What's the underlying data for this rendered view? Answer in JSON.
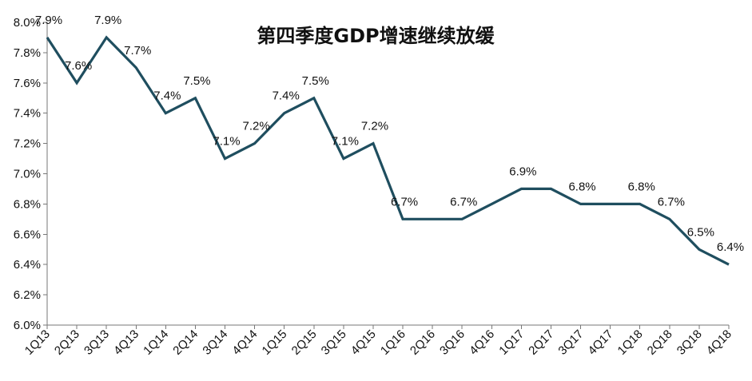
{
  "chart_data": {
    "type": "line",
    "title": "第四季度GDP增速继续放缓",
    "xlabel": "",
    "ylabel": "",
    "categories": [
      "1Q13",
      "2Q13",
      "3Q13",
      "4Q13",
      "1Q14",
      "2Q14",
      "3Q14",
      "4Q14",
      "1Q15",
      "2Q15",
      "3Q15",
      "4Q15",
      "1Q16",
      "2Q16",
      "3Q16",
      "4Q16",
      "1Q17",
      "2Q17",
      "3Q17",
      "4Q17",
      "1Q18",
      "2Q18",
      "3Q18",
      "4Q18"
    ],
    "values": [
      7.9,
      7.6,
      7.9,
      7.7,
      7.4,
      7.5,
      7.1,
      7.2,
      7.4,
      7.5,
      7.1,
      7.2,
      6.7,
      6.7,
      6.7,
      6.8,
      6.9,
      6.9,
      6.8,
      6.8,
      6.8,
      6.7,
      6.5,
      6.4
    ],
    "data_labels": [
      "7.9%",
      "7.6%",
      "7.9%",
      "7.7%",
      "7.4%",
      "7.5%",
      "7.1%",
      "7.2%",
      "7.4%",
      "7.5%",
      "7.1%",
      "7.2%",
      "6.7%",
      "",
      "6.7%",
      "",
      "6.9%",
      "",
      "6.8%",
      "",
      "6.8%",
      "6.7%",
      "6.5%",
      "6.4%"
    ],
    "ylim": [
      6.0,
      8.0
    ],
    "yticks": [
      "6.0%",
      "6.2%",
      "6.4%",
      "6.6%",
      "6.8%",
      "7.0%",
      "7.2%",
      "7.4%",
      "7.6%",
      "7.8%",
      "8.0%"
    ],
    "ytick_values": [
      6.0,
      6.2,
      6.4,
      6.6,
      6.8,
      7.0,
      7.2,
      7.4,
      7.6,
      7.8,
      8.0
    ],
    "grid": false,
    "legend": "none",
    "line_color": "#1f4e5f"
  }
}
